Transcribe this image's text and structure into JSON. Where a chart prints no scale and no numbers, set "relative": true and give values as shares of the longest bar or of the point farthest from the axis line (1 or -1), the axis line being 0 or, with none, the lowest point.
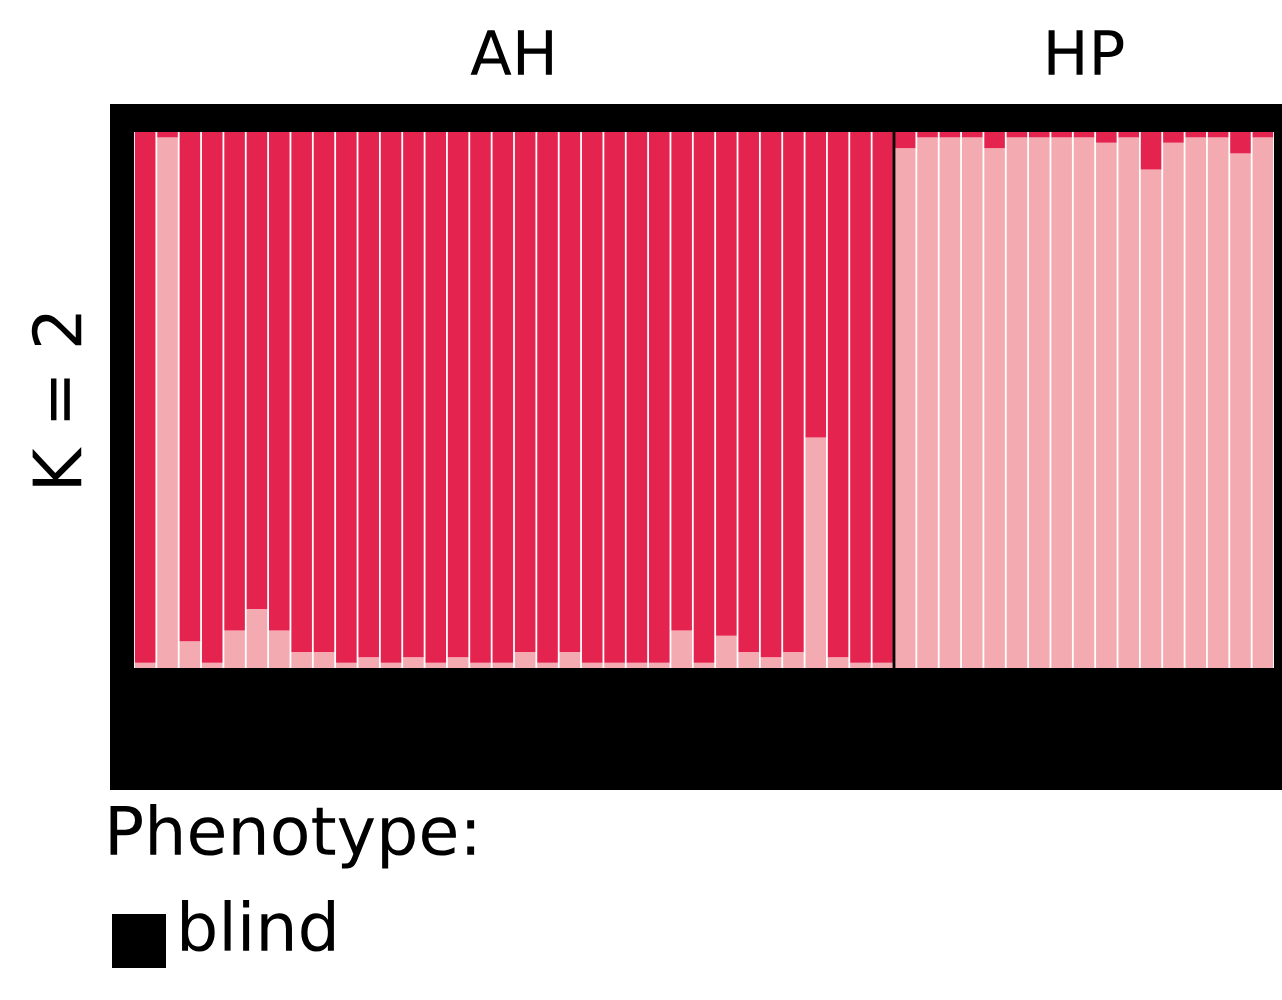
{
  "chart_data": [
    {
      "type": "bar",
      "relative": true,
      "stacked": true,
      "ylabel": "K = 2",
      "annotations": [
        "AH",
        "HP"
      ],
      "categories": [
        null,
        null,
        null,
        null,
        null,
        null,
        null,
        null,
        null,
        null,
        null,
        null,
        null,
        null,
        null,
        null,
        null,
        null,
        null,
        null,
        null,
        null,
        null,
        null,
        null,
        null,
        null,
        null,
        null,
        null,
        null,
        null,
        null,
        null,
        null,
        null,
        null,
        null,
        null,
        null,
        null,
        null,
        null,
        null,
        null,
        null,
        null,
        null,
        null,
        null,
        null
      ],
      "series": [
        {
          "color": "#f4aab1",
          "values": [
            0.01,
            0.99,
            0.05,
            0.01,
            0.07,
            0.11,
            0.07,
            0.03,
            0.03,
            0.01,
            0.02,
            0.01,
            0.02,
            0.01,
            0.02,
            0.01,
            0.01,
            0.03,
            0.01,
            0.03,
            0.01,
            0.01,
            0.01,
            0.01,
            0.07,
            0.01,
            0.06,
            0.03,
            0.02,
            0.03,
            0.43,
            0.02,
            0.01,
            0.01,
            0.97,
            0.99,
            0.99,
            0.99,
            0.97,
            0.99,
            0.99,
            0.99,
            0.99,
            0.98,
            0.99,
            0.93,
            0.98,
            0.99,
            0.99,
            0.96,
            0.99
          ]
        },
        {
          "color": "#e5234f",
          "values": [
            0.99,
            0.01,
            0.95,
            0.99,
            0.93,
            0.89,
            0.93,
            0.97,
            0.97,
            0.99,
            0.98,
            0.99,
            0.98,
            0.99,
            0.98,
            0.99,
            0.99,
            0.97,
            0.99,
            0.97,
            0.99,
            0.99,
            0.99,
            0.99,
            0.93,
            0.99,
            0.94,
            0.97,
            0.98,
            0.97,
            0.57,
            0.98,
            0.99,
            0.99,
            0.03,
            0.01,
            0.01,
            0.01,
            0.03,
            0.01,
            0.01,
            0.01,
            0.01,
            0.02,
            0.01,
            0.07,
            0.02,
            0.01,
            0.01,
            0.04,
            0.01
          ]
        }
      ]
    },
    {
      "type": "other",
      "title": "Phenotype:",
      "annotations": [
        "blind"
      ]
    }
  ]
}
